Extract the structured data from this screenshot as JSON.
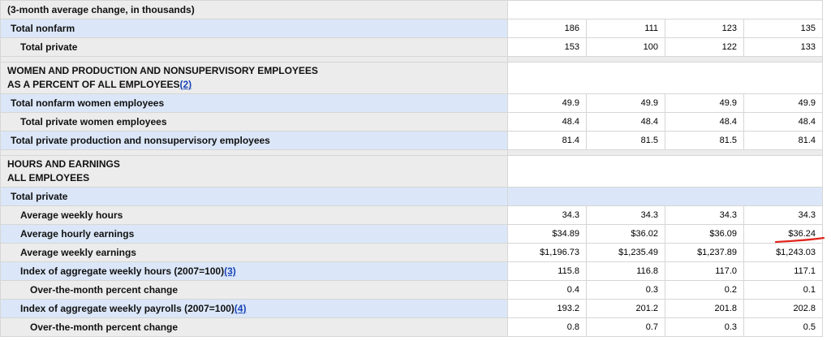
{
  "section1": {
    "title": "(3-month average change, in thousands)",
    "rows": [
      {
        "label": "Total nonfarm",
        "values": [
          "186",
          "111",
          "123",
          "135"
        ]
      },
      {
        "label": "Total private",
        "values": [
          "153",
          "100",
          "122",
          "133"
        ]
      }
    ]
  },
  "section2": {
    "title_line1": "WOMEN AND PRODUCTION AND NONSUPERVISORY EMPLOYEES",
    "title_line2": "AS A PERCENT OF ALL EMPLOYEES",
    "footnote": "(2)",
    "rows": [
      {
        "label": "Total nonfarm women employees",
        "values": [
          "49.9",
          "49.9",
          "49.9",
          "49.9"
        ]
      },
      {
        "label": "Total private women employees",
        "values": [
          "48.4",
          "48.4",
          "48.4",
          "48.4"
        ]
      },
      {
        "label": "Total private production and nonsupervisory employees",
        "values": [
          "81.4",
          "81.5",
          "81.5",
          "81.4"
        ]
      }
    ]
  },
  "section3": {
    "title_line1": "HOURS AND EARNINGS",
    "title_line2": "ALL EMPLOYEES",
    "subheader": "Total private",
    "rows": [
      {
        "label": "Average weekly hours",
        "values": [
          "34.3",
          "34.3",
          "34.3",
          "34.3"
        ]
      },
      {
        "label": "Average hourly earnings",
        "values": [
          "$34.89",
          "$36.02",
          "$36.09",
          "$36.24"
        ]
      },
      {
        "label": "Average weekly earnings",
        "values": [
          "$1,196.73",
          "$1,235.49",
          "$1,237.89",
          "$1,243.03"
        ]
      },
      {
        "label": "Index of aggregate weekly hours (2007=100)",
        "footnote": "(3)",
        "values": [
          "115.8",
          "116.8",
          "117.0",
          "117.1"
        ]
      },
      {
        "label": "Over-the-month percent change",
        "values": [
          "0.4",
          "0.3",
          "0.2",
          "0.1"
        ]
      },
      {
        "label": "Index of aggregate weekly payrolls (2007=100)",
        "footnote": "(4)",
        "values": [
          "193.2",
          "201.2",
          "201.8",
          "202.8"
        ]
      },
      {
        "label": "Over-the-month percent change",
        "values": [
          "0.8",
          "0.7",
          "0.3",
          "0.5"
        ]
      }
    ]
  },
  "annotation": {
    "color": "#e0241b"
  },
  "colors": {
    "label_bg": "#ececec",
    "highlight_bg": "#dbe7f8",
    "link": "#1a44b8"
  }
}
